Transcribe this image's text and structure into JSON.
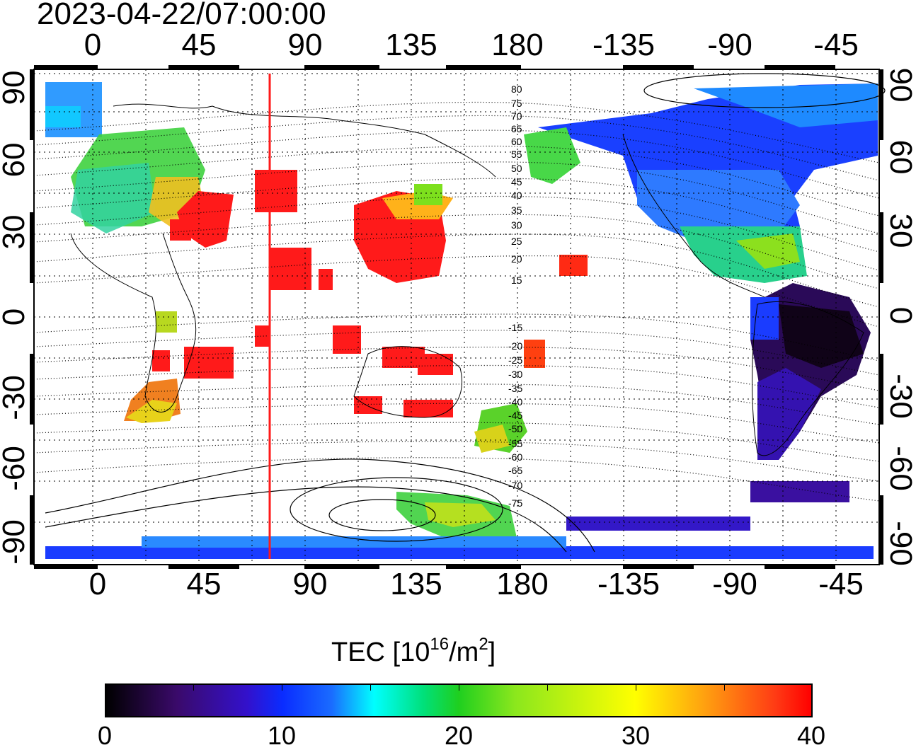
{
  "timestamp": "2023-04-22/07:00:00",
  "map": {
    "top_axis_labels": [
      "0",
      "45",
      "90",
      "135",
      "180",
      "-135",
      "-90",
      "-45"
    ],
    "bottom_axis_labels": [
      "0",
      "45",
      "90",
      "135",
      "180",
      "-135",
      "-90",
      "-45"
    ],
    "left_axis_labels": [
      "90",
      "60",
      "30",
      "0",
      "-30",
      "-60",
      "-90"
    ],
    "right_axis_labels": [
      "90",
      "60",
      "30",
      "0",
      "-30",
      "-60",
      "-90"
    ],
    "contour_labels": [
      "80",
      "75",
      "70",
      "65",
      "60",
      "55",
      "50",
      "45",
      "40",
      "35",
      "30",
      "25",
      "20",
      "15",
      "-15",
      "-20",
      "-25",
      "-30",
      "-35",
      "-40",
      "-45",
      "-50",
      "-55",
      "-60",
      "-65",
      "-70",
      "-75"
    ],
    "red_meridian_longitude": 75
  },
  "colorbar": {
    "title_main": "TEC  [10",
    "title_exp1": "16",
    "title_mid": "/m",
    "title_exp2": "2",
    "title_end": "]",
    "tick_labels": [
      "0",
      "10",
      "20",
      "30",
      "40"
    ],
    "min": 0,
    "max": 40
  },
  "colors": {
    "low": "#000000",
    "mid_blue": "#0a2cff",
    "cyan": "#00ffff",
    "green": "#1fcf1f",
    "yellow": "#ffff00",
    "high": "#ff0000"
  }
}
